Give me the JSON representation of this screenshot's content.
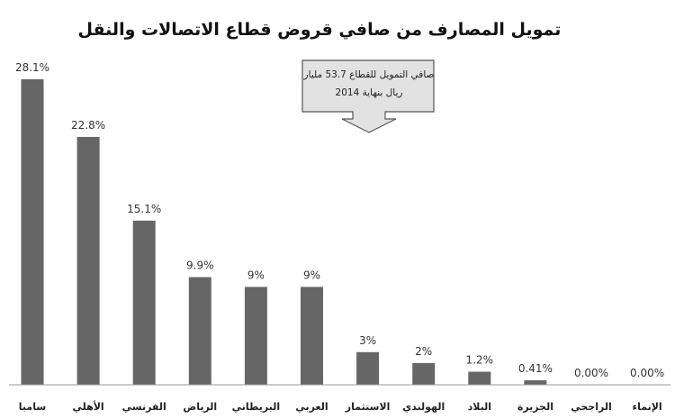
{
  "chart_data": {
    "type": "bar",
    "title": "تمويل المصارف من صافي قروض قطاع الاتصالات والنقل",
    "categories": [
      "سامبا",
      "الأهلي",
      "الفرنسي",
      "الرياض",
      "البريطاني",
      "العربي",
      "الاستثمار",
      "الهولندي",
      "البلاد",
      "الجزيرة",
      "الراجحي",
      "الإنماء"
    ],
    "values": [
      28.1,
      22.8,
      15.1,
      9.9,
      9,
      9,
      3,
      2,
      1.2,
      0.41,
      0.0,
      0.0
    ],
    "value_labels": [
      "28.1%",
      "22.8%",
      "15.1%",
      "9.9%",
      "9%",
      "9%",
      "3%",
      "2%",
      "1.2%",
      "0.41%",
      "0.00%",
      "0.00%"
    ],
    "unit": "%",
    "ylim": [
      0,
      28.1
    ],
    "grid": false,
    "legend": "none",
    "bar_color": "#666666",
    "annotation": {
      "line1": "صافي التمويل للقطاع 53.7 مليار",
      "line2": "ريال بنهاية 2014",
      "style": "down-arrow callout"
    }
  }
}
